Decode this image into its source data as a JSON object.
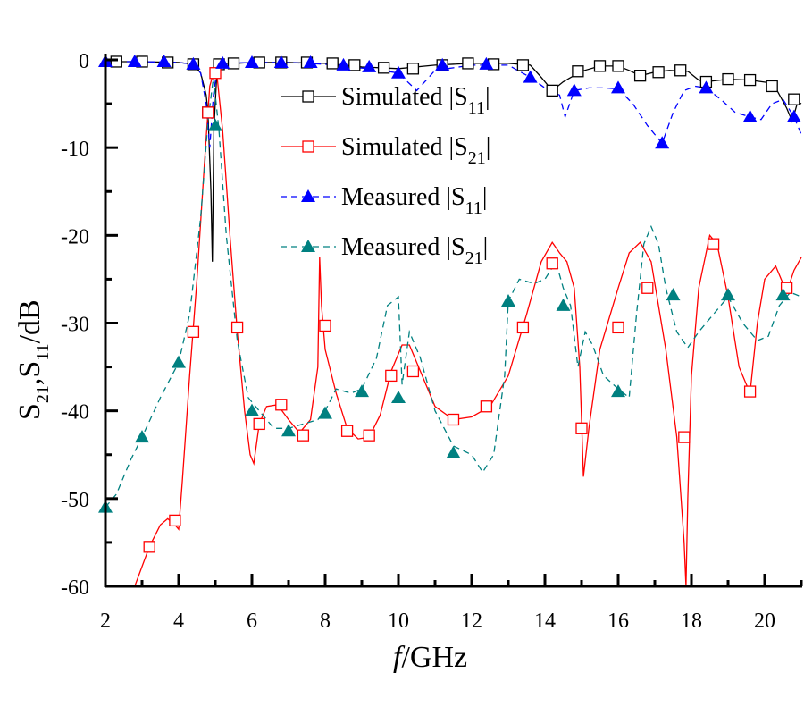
{
  "chart_data": {
    "type": "line",
    "title": "",
    "xlabel_italic": "f",
    "xlabel_rest": "/GHz",
    "ylabel": "S21,S11/dB",
    "ylabel_parts": {
      "s": "S",
      "sub1": "21",
      "comma": ",",
      "sub2": "11",
      "unit": "/dB"
    },
    "xlim": [
      2,
      21
    ],
    "ylim": [
      -60,
      0
    ],
    "xticks": [
      2,
      4,
      6,
      8,
      10,
      12,
      14,
      16,
      18,
      20
    ],
    "xtick_labels": [
      "2",
      "4",
      "6",
      "8",
      "10",
      "12",
      "14",
      "16",
      "18",
      "20"
    ],
    "yticks": [
      0,
      -10,
      -20,
      -30,
      -40,
      -50,
      -60
    ],
    "ytick_labels": [
      "0",
      "-10",
      "-20",
      "-30",
      "-40",
      "-50",
      "-60"
    ],
    "grid": false,
    "legend_position": "upper-center",
    "series": [
      {
        "name": "Simulated |S11|",
        "legend_main": "Simulated |S",
        "legend_sub": "11",
        "legend_end": "|",
        "color": "#000000",
        "dash": "solid",
        "marker": "square-open",
        "x": [
          2,
          3,
          4,
          4.4,
          4.6,
          4.75,
          4.8,
          4.88,
          4.92,
          4.96,
          5.05,
          5.2,
          5.6,
          6,
          7,
          8,
          9,
          10,
          11,
          12,
          13,
          13.6,
          13.9,
          14.2,
          14.5,
          15,
          15.5,
          16,
          16.3,
          16.6,
          17,
          17.4,
          17.9,
          18.2,
          18.4,
          19,
          19.6,
          20.1,
          20.3,
          20.6,
          20.75,
          20.9,
          21
        ],
        "y": [
          -0.2,
          -0.2,
          -0.3,
          -0.5,
          -1.5,
          -4,
          -6,
          -15,
          -23,
          -8,
          -0.8,
          -0.4,
          -0.4,
          -0.3,
          -0.3,
          -0.4,
          -0.8,
          -1.0,
          -0.6,
          -0.4,
          -0.4,
          -0.6,
          -2,
          -3.5,
          -2.5,
          -1.3,
          -0.7,
          -0.7,
          -1.2,
          -1.8,
          -1.4,
          -1.2,
          -1.3,
          -2.3,
          -2.5,
          -2.2,
          -2.3,
          -2.6,
          -3.2,
          -5.5,
          -7,
          -4.8,
          -5
        ],
        "marker_x": [
          2.3,
          3.0,
          3.7,
          4.4,
          4.8,
          5.1,
          5.5,
          6.2,
          6.8,
          7.5,
          8.2,
          8.8,
          9.6,
          10.4,
          11.2,
          11.9,
          12.6,
          13.4,
          14.2,
          14.9,
          15.5,
          16.0,
          16.6,
          17.1,
          17.7,
          18.4,
          19.0,
          19.6,
          20.2,
          20.8
        ],
        "marker_y": [
          -0.2,
          -0.2,
          -0.3,
          -0.5,
          -6,
          -0.5,
          -0.4,
          -0.3,
          -0.3,
          -0.3,
          -0.4,
          -0.6,
          -0.9,
          -1.0,
          -0.6,
          -0.4,
          -0.5,
          -0.6,
          -3.5,
          -1.3,
          -0.7,
          -0.7,
          -1.8,
          -1.4,
          -1.2,
          -2.5,
          -2.2,
          -2.3,
          -3.0,
          -4.5
        ]
      },
      {
        "name": "Simulated |S21|",
        "legend_main": "Simulated |S",
        "legend_sub": "21",
        "legend_end": "|",
        "color": "#ff0000",
        "dash": "solid",
        "marker": "square-open",
        "x": [
          2.8,
          3.2,
          3.5,
          3.7,
          3.9,
          4.0,
          4.1,
          4.3,
          4.5,
          4.7,
          4.85,
          4.95,
          5.05,
          5.2,
          5.4,
          5.6,
          5.8,
          5.95,
          6.05,
          6.2,
          6.4,
          6.7,
          7.0,
          7.3,
          7.6,
          7.8,
          7.85,
          7.9,
          8.0,
          8.3,
          8.6,
          8.9,
          9.2,
          9.5,
          9.8,
          10.1,
          10.3,
          10.6,
          11.0,
          11.5,
          12.0,
          12.5,
          13.0,
          13.5,
          13.9,
          14.2,
          14.4,
          14.6,
          14.8,
          14.95,
          15.05,
          15.2,
          15.5,
          16.0,
          16.3,
          16.6,
          16.9,
          17.3,
          17.6,
          17.8,
          17.85,
          17.9,
          18.0,
          18.2,
          18.5,
          18.7,
          19.0,
          19.3,
          19.6,
          19.8,
          20.0,
          20.3,
          20.6,
          20.8,
          21
        ],
        "y": [
          -60,
          -55.5,
          -53,
          -52.3,
          -53,
          -53.5,
          -48,
          -36,
          -25,
          -12,
          -3,
          -1.5,
          -2,
          -8,
          -20,
          -31,
          -40,
          -45,
          -46,
          -41.5,
          -39.5,
          -39.3,
          -41,
          -42.5,
          -41,
          -35,
          -22.5,
          -28,
          -33,
          -38,
          -42,
          -43.2,
          -43,
          -40.5,
          -35.5,
          -32.5,
          -32.5,
          -35.5,
          -39.5,
          -41,
          -40.7,
          -39.5,
          -36,
          -29,
          -23,
          -20.8,
          -22,
          -23,
          -26,
          -35,
          -47.5,
          -42,
          -33,
          -26,
          -22,
          -20.8,
          -23,
          -33,
          -43,
          -55,
          -60,
          -50,
          -36,
          -26,
          -20,
          -21,
          -27,
          -35,
          -38,
          -30,
          -25,
          -23.5,
          -26.5,
          -24,
          -22.5
        ],
        "marker_x": [
          3.2,
          3.9,
          4.4,
          4.8,
          5.0,
          5.6,
          6.2,
          6.8,
          7.4,
          8.0,
          8.6,
          9.2,
          9.8,
          10.4,
          11.5,
          12.4,
          13.4,
          14.2,
          15.0,
          16.0,
          16.8,
          17.8,
          18.6,
          19.6,
          20.6
        ],
        "marker_y": [
          -55.5,
          -52.5,
          -31,
          -6,
          -1.5,
          -30.5,
          -41.5,
          -39.3,
          -42.8,
          -30.3,
          -42.3,
          -42.8,
          -36,
          -35.5,
          -41,
          -39.5,
          -30.5,
          -23.2,
          -42,
          -30.5,
          -26,
          -43,
          -21,
          -37.8,
          -26
        ]
      },
      {
        "name": "Measured |S11|",
        "legend_main": "Measured |S",
        "legend_sub": "11",
        "legend_end": "|",
        "color": "#0000ff",
        "dash": "dashed",
        "marker": "triangle-filled",
        "x": [
          2,
          3,
          4,
          4.4,
          4.6,
          4.75,
          4.85,
          4.95,
          5.05,
          5.2,
          6,
          7,
          8,
          8.6,
          9.2,
          10,
          10.5,
          11,
          12,
          13,
          13.6,
          14.1,
          14.4,
          14.55,
          14.8,
          15.2,
          15.6,
          16.0,
          16.4,
          16.8,
          17.2,
          17.5,
          17.8,
          18.1,
          18.4,
          18.8,
          19.2,
          19.6,
          19.9,
          20.2,
          20.5,
          20.8,
          21
        ],
        "y": [
          -0.2,
          -0.2,
          -0.3,
          -0.5,
          -1.5,
          -5,
          -10,
          -4,
          -1,
          -0.4,
          -0.3,
          -0.3,
          -0.5,
          -0.8,
          -1.0,
          -1.5,
          -3.5,
          -1.2,
          -0.6,
          -0.6,
          -2,
          -3.5,
          -4,
          -6.5,
          -3.5,
          -3.2,
          -3.2,
          -3.3,
          -5,
          -7.5,
          -9.5,
          -6,
          -3.5,
          -3,
          -3.2,
          -4.5,
          -6,
          -6.5,
          -6.8,
          -5,
          -4.5,
          -6.5,
          -8.5
        ],
        "marker_x": [
          2.0,
          2.8,
          3.6,
          4.4,
          5.2,
          6.0,
          6.8,
          7.6,
          8.5,
          9.2,
          10.0,
          11.2,
          12.4,
          13.6,
          14.8,
          16.0,
          17.2,
          18.4,
          19.6,
          20.8
        ],
        "marker_y": [
          -0.2,
          -0.2,
          -0.2,
          -0.5,
          -0.4,
          -0.3,
          -0.3,
          -0.3,
          -0.6,
          -0.8,
          -1.5,
          -0.6,
          -0.5,
          -2,
          -3.5,
          -3.2,
          -9.5,
          -3.2,
          -6.5,
          -6.5
        ]
      },
      {
        "name": "Measured |S21|",
        "legend_main": "Measured |S",
        "legend_sub": "21",
        "legend_end": "|",
        "color": "#008080",
        "dash": "dashed",
        "marker": "triangle-filled",
        "x": [
          2,
          2.3,
          2.7,
          3.0,
          3.5,
          4.0,
          4.3,
          4.6,
          4.8,
          4.95,
          5.1,
          5.3,
          5.6,
          5.9,
          6.2,
          6.6,
          7.0,
          7.4,
          7.8,
          8.0,
          8.3,
          8.7,
          9.0,
          9.4,
          9.7,
          10.0,
          10.1,
          10.3,
          10.6,
          11.0,
          11.5,
          12.0,
          12.3,
          12.6,
          12.9,
          13.0,
          13.3,
          13.7,
          14.0,
          14.3,
          14.5,
          14.7,
          14.9,
          15.1,
          15.3,
          15.6,
          16.0,
          16.3,
          16.5,
          16.7,
          16.9,
          17.1,
          17.3,
          17.6,
          17.9,
          18.2,
          18.6,
          19.0,
          19.4,
          19.8,
          20.1,
          20.4,
          20.7,
          21
        ],
        "y": [
          -51,
          -49.5,
          -45.5,
          -43,
          -38.5,
          -34.5,
          -29,
          -18,
          -7,
          -2,
          -8,
          -20,
          -32,
          -38.5,
          -40,
          -42,
          -42,
          -41.5,
          -41,
          -40,
          -37.5,
          -38,
          -37.5,
          -34,
          -28,
          -27,
          -37,
          -31,
          -34,
          -40,
          -44,
          -45,
          -47,
          -45,
          -36,
          -27.5,
          -25,
          -25.5,
          -25,
          -23,
          -26,
          -28,
          -35,
          -31,
          -32.5,
          -36,
          -37.5,
          -38.5,
          -29,
          -21,
          -19,
          -21,
          -26,
          -31,
          -32.8,
          -31,
          -29,
          -27,
          -30,
          -32,
          -31.5,
          -28,
          -26.5,
          -27
        ],
        "marker_x": [
          2.0,
          3.0,
          4.0,
          5.0,
          6.0,
          7.0,
          8.0,
          9.0,
          10.0,
          11.5,
          13.0,
          14.5,
          16.0,
          17.5,
          19.0,
          20.5
        ],
        "marker_y": [
          -51,
          -43,
          -34.5,
          -7.5,
          -40,
          -42.3,
          -40.3,
          -37.8,
          -38.5,
          -44.8,
          -27.5,
          -28,
          -37.8,
          -26.8,
          -26.8,
          -26.8
        ]
      }
    ]
  }
}
